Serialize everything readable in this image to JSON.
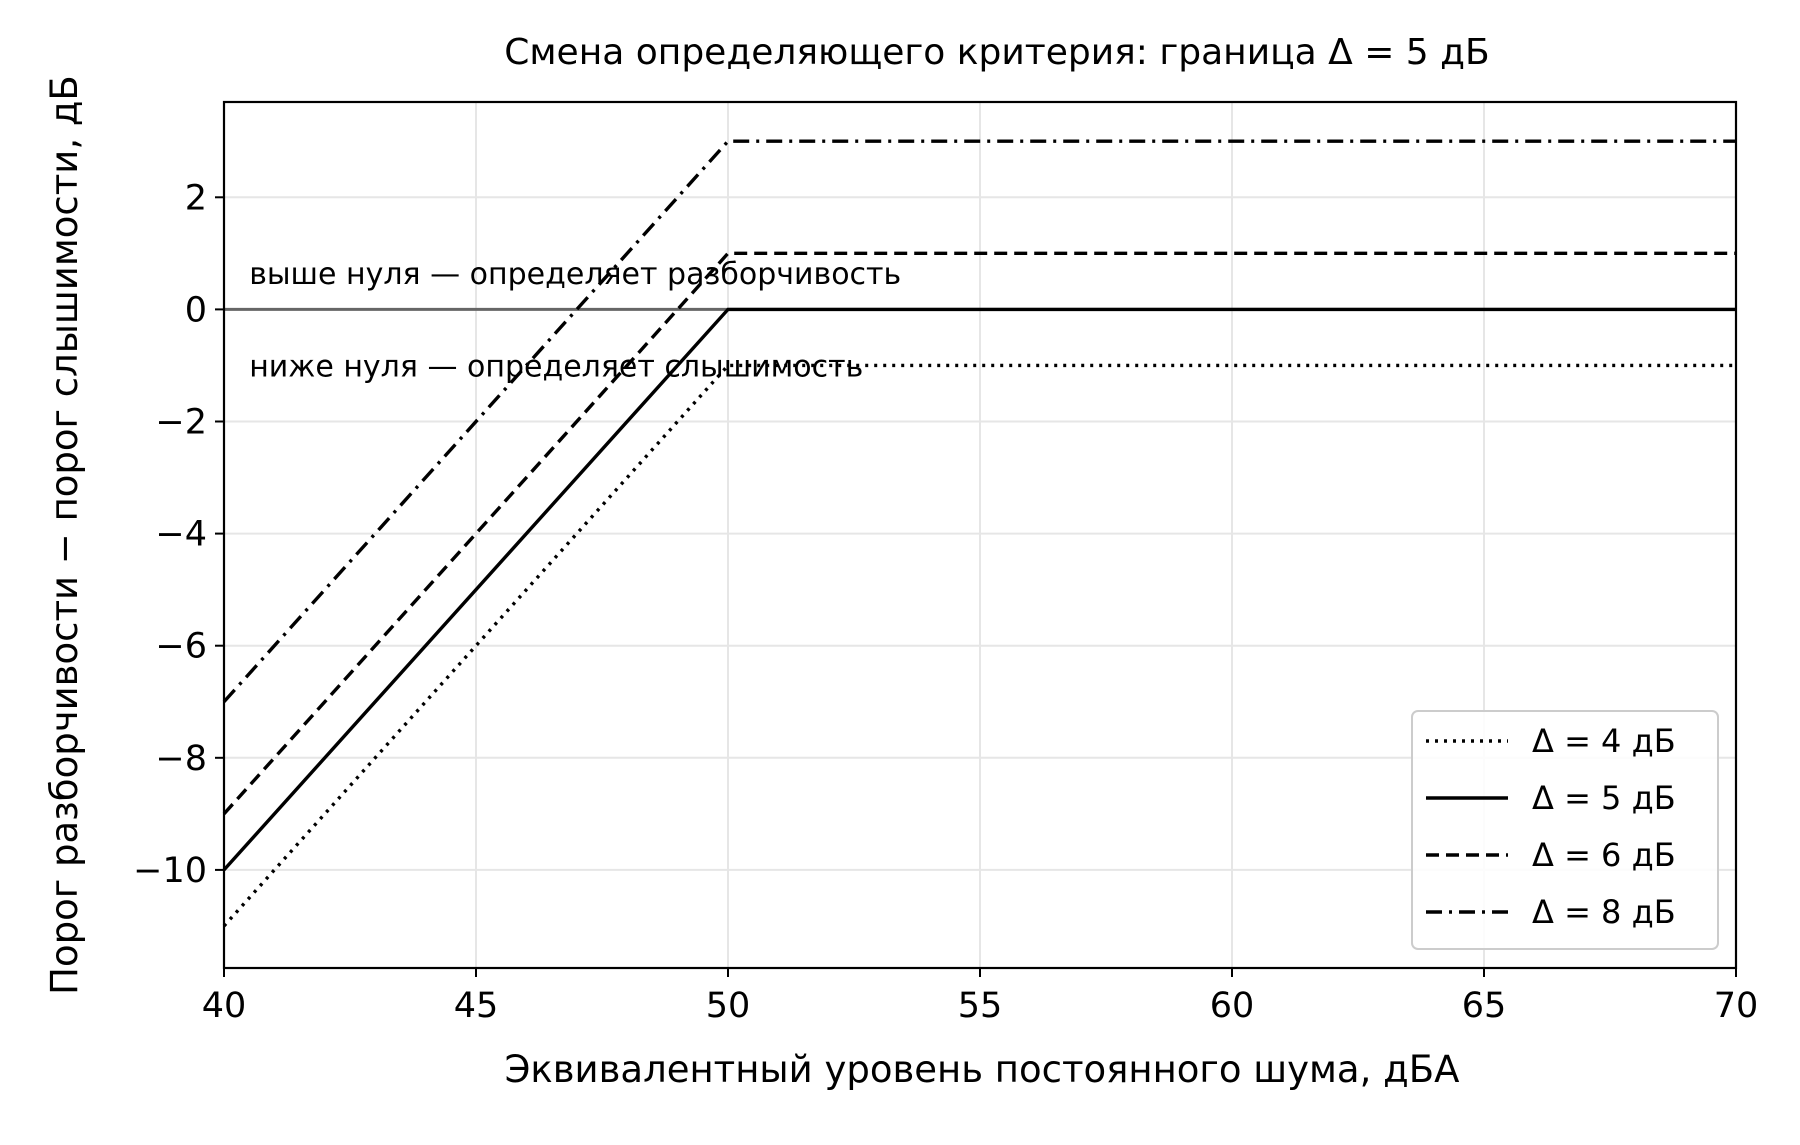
{
  "chart_data": {
    "type": "line",
    "title": "Смена определяющего критерия: граница Δ = 5 дБ",
    "xlabel": "Эквивалентный уровень постоянного шума, дБА",
    "ylabel": "Порог разборчивости − порог слышимости, дБ",
    "xlim": [
      40,
      70
    ],
    "ylim": [
      -11.75,
      3.7
    ],
    "xticks": [
      40,
      45,
      50,
      55,
      60,
      65,
      70
    ],
    "yticks": [
      -10,
      -8,
      -6,
      -4,
      -2,
      0,
      2
    ],
    "xtick_labels": [
      "40",
      "45",
      "50",
      "55",
      "60",
      "65",
      "70"
    ],
    "ytick_labels": [
      "−10",
      "−8",
      "−6",
      "−4",
      "−2",
      "0",
      "2"
    ],
    "grid": true,
    "legend_position": "lower-right",
    "series": [
      {
        "name": "Δ = 4 дБ",
        "style": "dotted",
        "color": "#000000",
        "x": [
          40,
          50,
          70
        ],
        "y": [
          -11,
          -1,
          -1
        ]
      },
      {
        "name": "Δ = 5 дБ",
        "style": "solid",
        "color": "#000000",
        "x": [
          40,
          50,
          70
        ],
        "y": [
          -10,
          0,
          0
        ]
      },
      {
        "name": "Δ = 6 дБ",
        "style": "dashed",
        "color": "#000000",
        "x": [
          40,
          50,
          70
        ],
        "y": [
          -9,
          1,
          1
        ]
      },
      {
        "name": "Δ = 8 дБ",
        "style": "dashdot",
        "color": "#000000",
        "x": [
          40,
          50,
          70
        ],
        "y": [
          -7,
          3,
          3
        ]
      }
    ],
    "reference_line": {
      "y": 0,
      "color": "#666666"
    },
    "annotations": [
      {
        "text": "выше нуля — определяет разборчивость",
        "x": 40.5,
        "y": 0.45
      },
      {
        "text": "ниже нуля — определяет слышимость",
        "x": 40.5,
        "y": -1.2
      }
    ]
  }
}
